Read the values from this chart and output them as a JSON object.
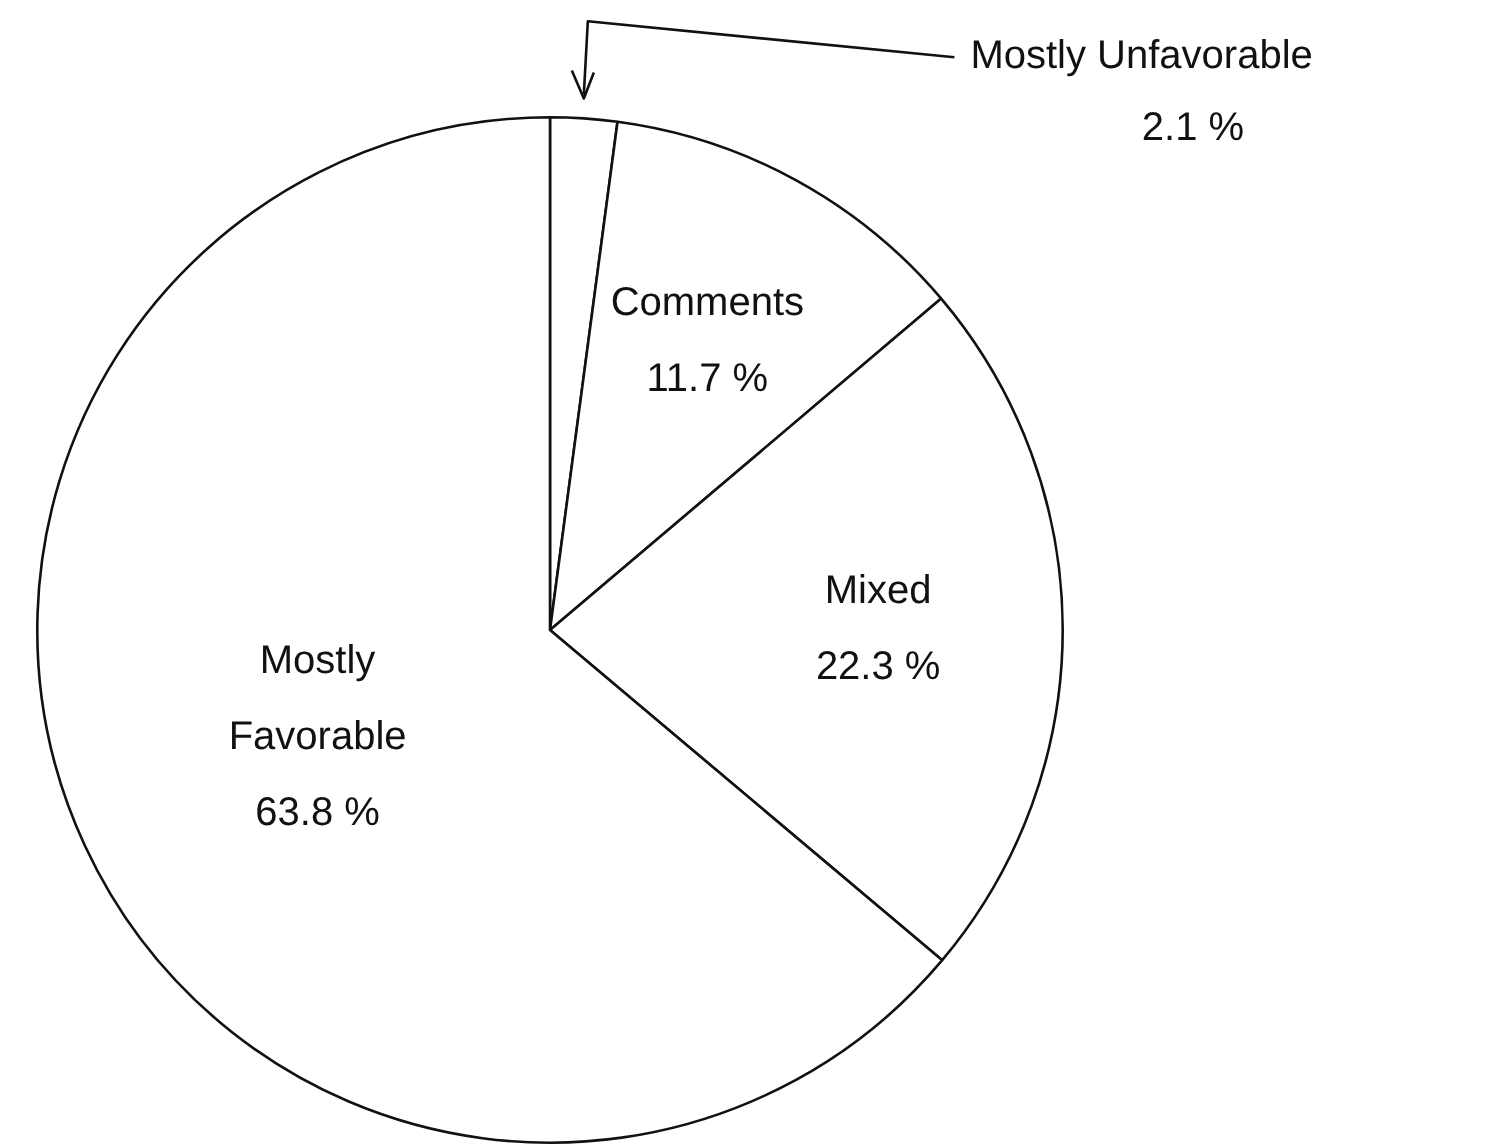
{
  "chart_data": {
    "type": "pie",
    "categories": [
      "Mostly Unfavorable",
      "Comments",
      "Mixed",
      "Mostly Favorable"
    ],
    "values": [
      2.1,
      11.7,
      22.3,
      63.8
    ],
    "colors": [
      "#ffffff",
      "#ffffff",
      "#ffffff",
      "#ffffff"
    ],
    "value_labels": [
      "2.1 %",
      "11.7 %",
      "22.3 %",
      "63.8 %"
    ],
    "legend": false
  }
}
